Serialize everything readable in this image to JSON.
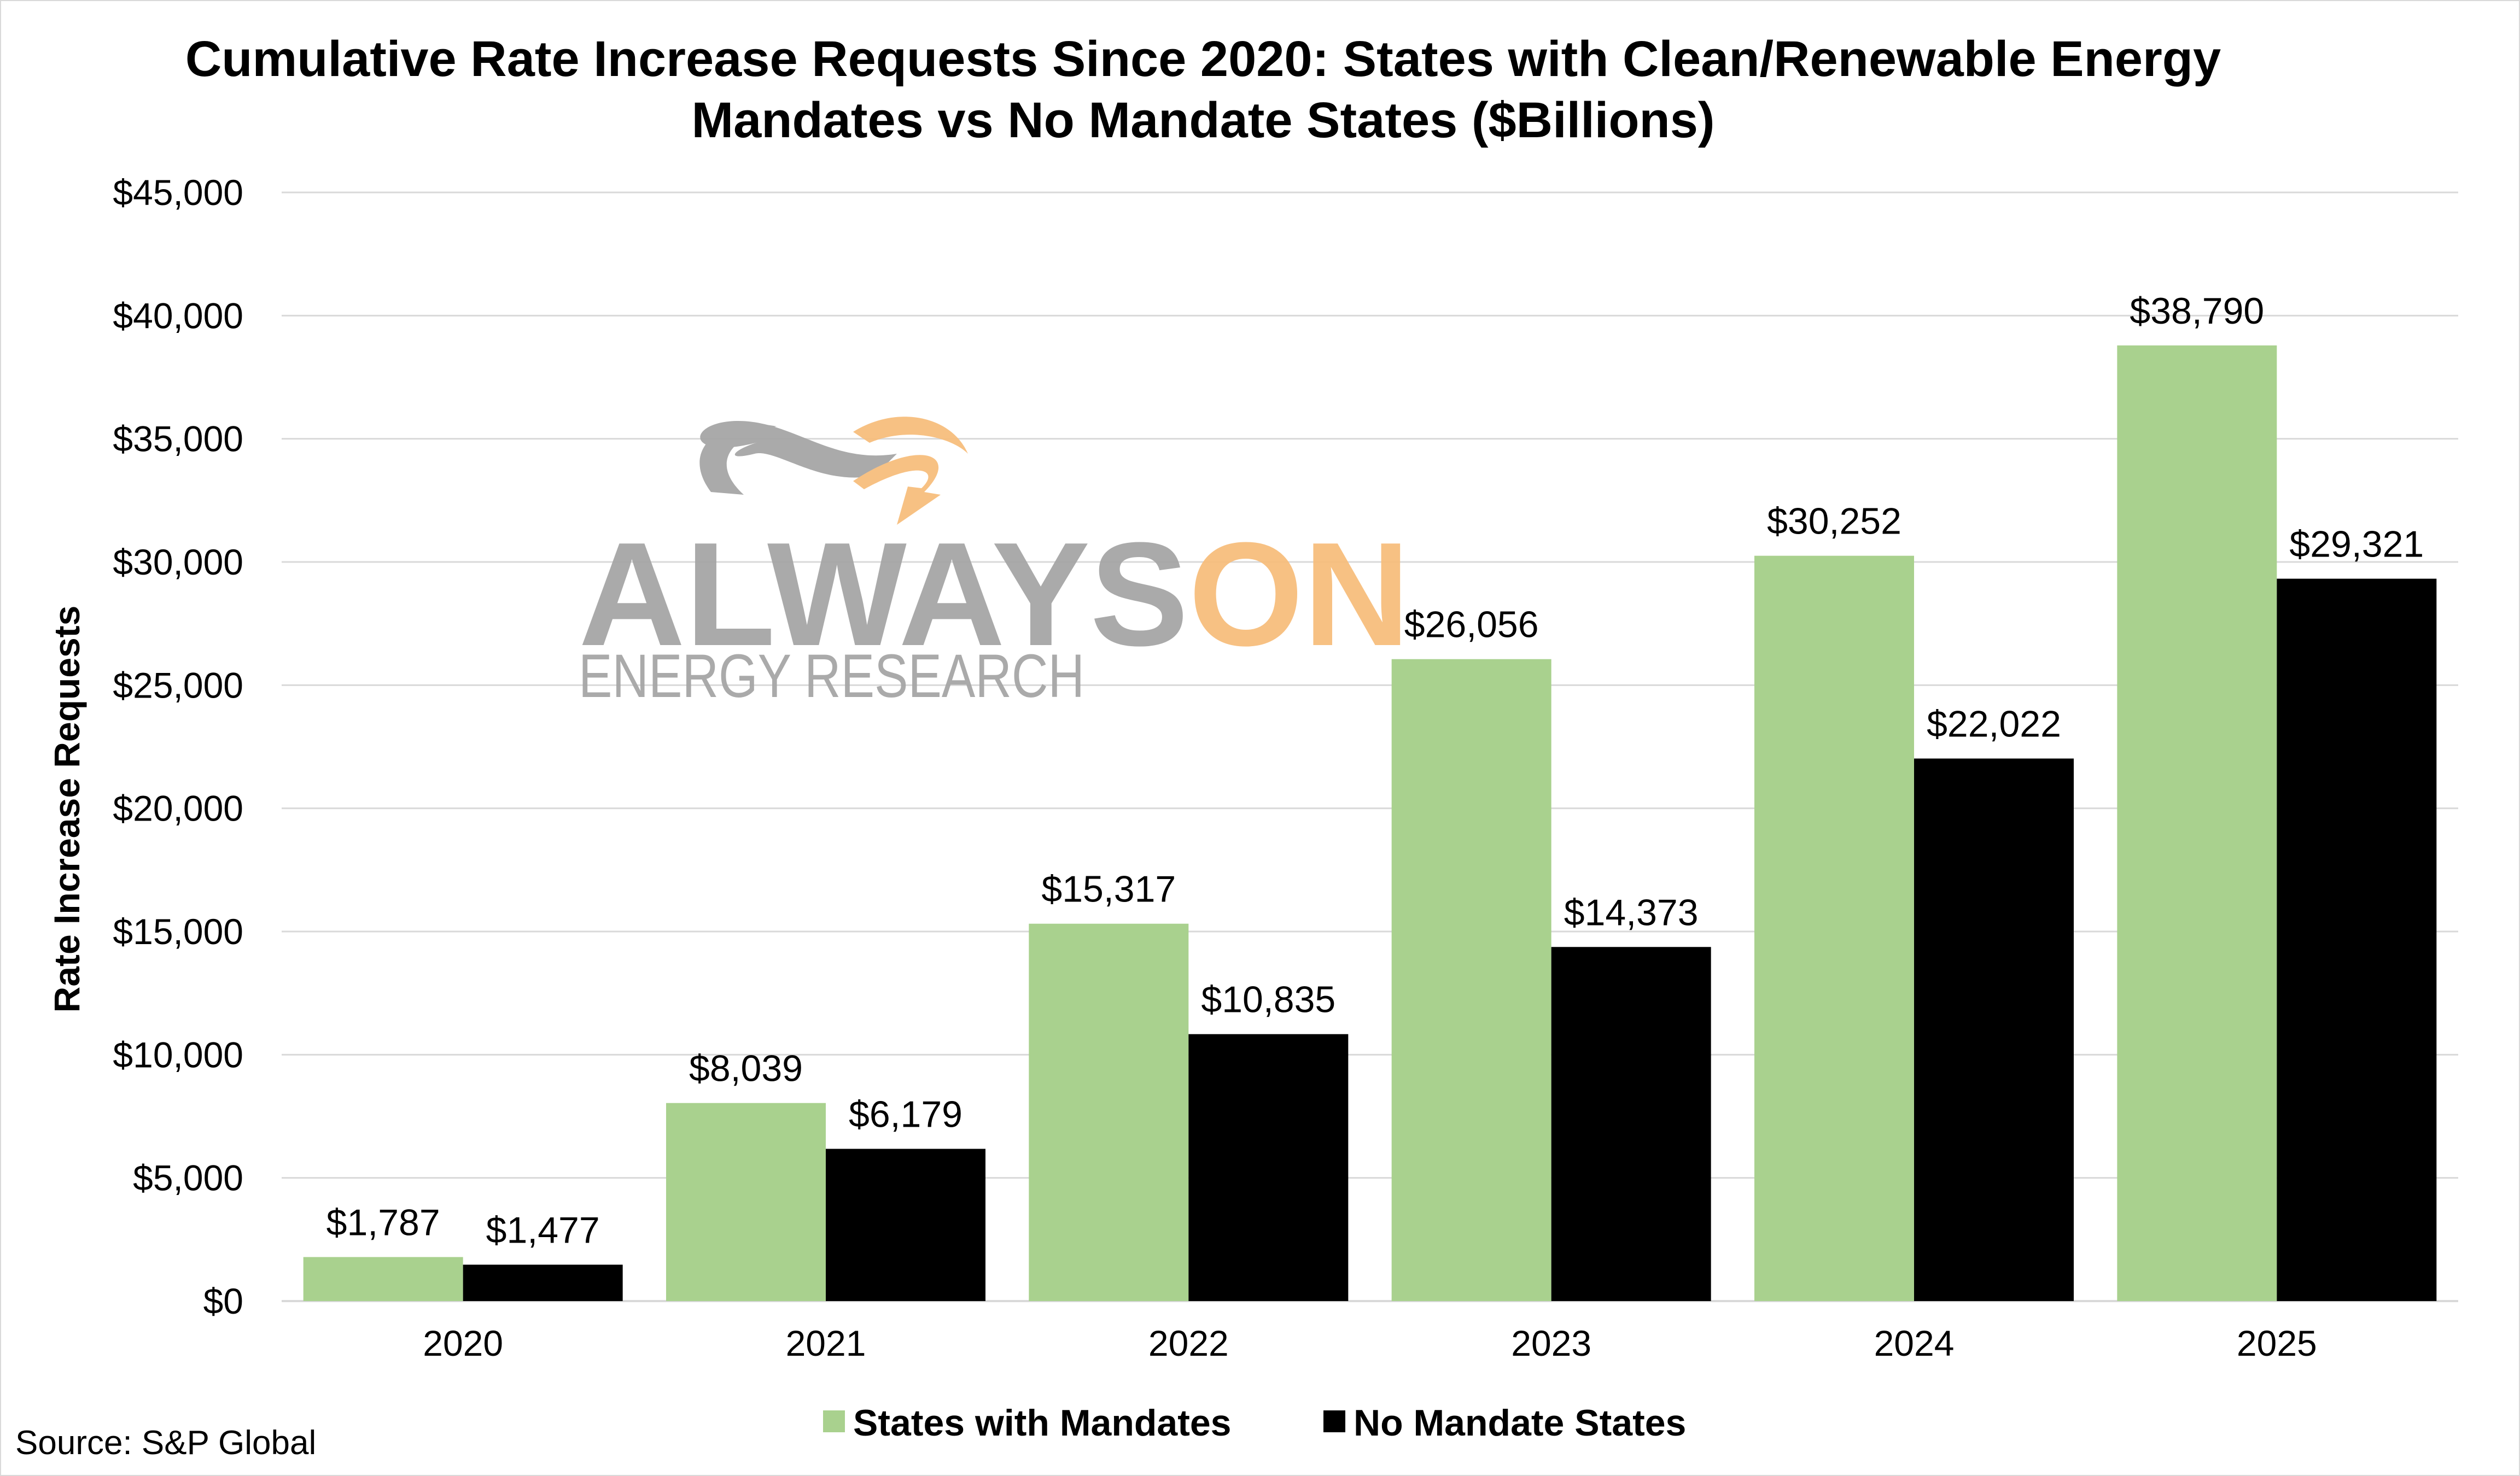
{
  "chart_data": {
    "type": "bar",
    "title": "Cumulative Rate Increase Requests Since 2020: States with Clean/Renewable Energy Mandates vs No Mandate States ($Billions)",
    "xlabel": "",
    "ylabel": "Rate Increase Requests",
    "categories": [
      "2020",
      "2021",
      "2022",
      "2023",
      "2024",
      "2025"
    ],
    "ylim": [
      0,
      45000
    ],
    "ytick_values": [
      0,
      5000,
      10000,
      15000,
      20000,
      25000,
      30000,
      35000,
      40000,
      45000
    ],
    "ytick_labels": [
      "$0",
      "$5,000",
      "$10,000",
      "$15,000",
      "$20,000",
      "$25,000",
      "$30,000",
      "$35,000",
      "$40,000",
      "$45,000"
    ],
    "grid": true,
    "legend_position": "bottom",
    "series": [
      {
        "name": "States with Mandates",
        "color": "#a9d18e",
        "values": [
          1787,
          8039,
          15317,
          26056,
          30252,
          38790
        ],
        "labels": [
          "$1,787",
          "$8,039",
          "$15,317",
          "$26,056",
          "$30,252",
          "$38,790"
        ]
      },
      {
        "name": "No Mandate States",
        "color": "#000000",
        "values": [
          1477,
          6179,
          10835,
          14373,
          22022,
          29321
        ],
        "labels": [
          "$1,477",
          "$6,179",
          "$10,835",
          "$14,373",
          "$22,022",
          "$29,321"
        ]
      }
    ]
  },
  "watermark": {
    "brand_left": "ALWAYS",
    "brand_right": "ON",
    "subtitle": "ENERGY RESEARCH",
    "gray_color": "#a6a6a6",
    "orange_color": "#f7be7d"
  },
  "source": "Source: S&P Global",
  "colors": {
    "gridline": "#d9d9d9",
    "axis": "#d9d9d9"
  }
}
